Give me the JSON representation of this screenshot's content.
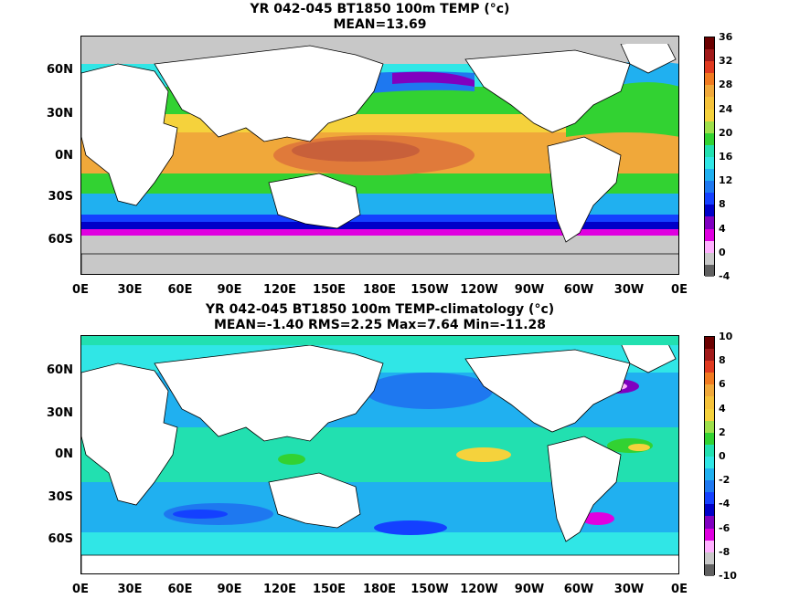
{
  "panel1": {
    "title": "YR 042-045 BT1850 100m TEMP (°c)",
    "stats": "MEAN=13.69",
    "colorbar": {
      "ticks": [
        "36",
        "32",
        "28",
        "24",
        "20",
        "16",
        "12",
        "8",
        "4",
        "0",
        "-4"
      ],
      "colors": [
        "#6b0000",
        "#a11a1a",
        "#e03a20",
        "#f07a20",
        "#f0a83a",
        "#f5c23a",
        "#f5d23c",
        "#9ee04a",
        "#32d232",
        "#22e0b0",
        "#30e6e6",
        "#20b0f0",
        "#1e78f0",
        "#1440ff",
        "#0000c8",
        "#8000c0",
        "#e000e0",
        "#ffb0ff",
        "#c8c8c8",
        "#606060"
      ]
    },
    "lat_labels": [
      "60N",
      "30N",
      "0N",
      "30S",
      "60S"
    ],
    "lon_labels": [
      "0E",
      "30E",
      "60E",
      "90E",
      "120E",
      "150E",
      "180E",
      "150W",
      "120W",
      "90W",
      "60W",
      "30W",
      "0E"
    ]
  },
  "panel2": {
    "title": "YR 042-045 BT1850 100m TEMP-climatology (°c)",
    "stats": "MEAN=-1.40   RMS=2.25   Max=7.64   Min=-11.28",
    "colorbar": {
      "ticks": [
        "10",
        "8",
        "6",
        "4",
        "2",
        "0",
        "-2",
        "-4",
        "-6",
        "-8",
        "-10"
      ],
      "colors": [
        "#6b0000",
        "#a11a1a",
        "#e03a20",
        "#f07a20",
        "#f0a83a",
        "#f5c23a",
        "#f5d23c",
        "#9ee04a",
        "#32d232",
        "#22e0b0",
        "#30e6e6",
        "#20b0f0",
        "#1e78f0",
        "#1440ff",
        "#0000c8",
        "#8000c0",
        "#e000e0",
        "#ffb0ff",
        "#c8c8c8",
        "#606060"
      ]
    },
    "lat_labels": [
      "60N",
      "30N",
      "0N",
      "30S",
      "60S"
    ],
    "lon_labels": [
      "0E",
      "30E",
      "60E",
      "90E",
      "120E",
      "150E",
      "180E",
      "150W",
      "120W",
      "90W",
      "60W",
      "30W",
      "0E"
    ]
  }
}
